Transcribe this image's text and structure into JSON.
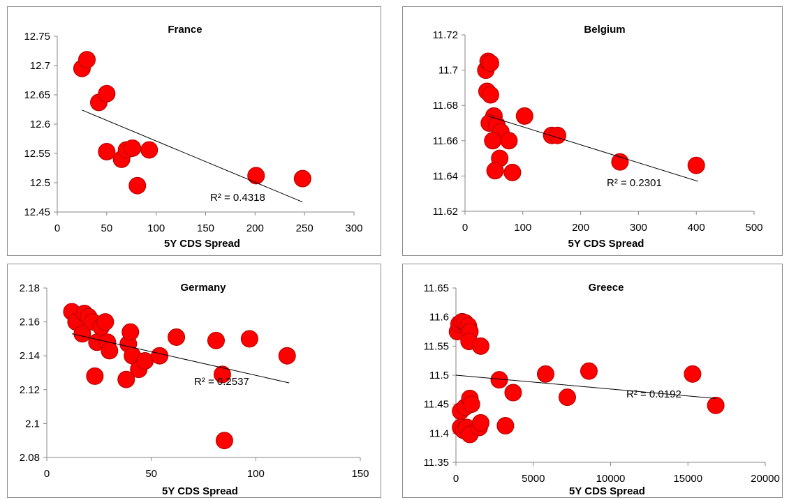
{
  "colors": {
    "marker": "#ff0000",
    "marker_stroke": "#b00000",
    "trendline": "#000000",
    "frame": "#8c8c8c"
  },
  "chart_data": [
    {
      "type": "scatter",
      "title": "France",
      "xlabel": "5Y CDS Spread",
      "ylabel": "",
      "xlim": [
        0,
        300
      ],
      "ylim": [
        12.45,
        12.75
      ],
      "xticks": [
        "0",
        "50",
        "100",
        "150",
        "200",
        "250",
        "300"
      ],
      "yticks": [
        "12.45",
        "12.5",
        "12.55",
        "12.6",
        "12.65",
        "12.7",
        "12.75"
      ],
      "r2_label": "R² = 0.4318",
      "trendline": {
        "x": [
          25,
          248
        ],
        "y": [
          12.624,
          12.467
        ]
      },
      "points": [
        {
          "x": 25,
          "y": 12.695
        },
        {
          "x": 30,
          "y": 12.71
        },
        {
          "x": 42,
          "y": 12.637
        },
        {
          "x": 50,
          "y": 12.652
        },
        {
          "x": 50,
          "y": 12.553
        },
        {
          "x": 65,
          "y": 12.54
        },
        {
          "x": 70,
          "y": 12.556
        },
        {
          "x": 76,
          "y": 12.559
        },
        {
          "x": 81,
          "y": 12.495
        },
        {
          "x": 93,
          "y": 12.556
        },
        {
          "x": 201,
          "y": 12.512
        },
        {
          "x": 248,
          "y": 12.507
        }
      ]
    },
    {
      "type": "scatter",
      "title": "Belgium",
      "xlabel": "5Y CDS Spread",
      "ylabel": "",
      "xlim": [
        0,
        500
      ],
      "ylim": [
        11.62,
        11.72
      ],
      "xticks": [
        "0",
        "100",
        "200",
        "300",
        "400",
        "500"
      ],
      "yticks": [
        "11.62",
        "11.64",
        "11.66",
        "11.68",
        "11.7",
        "11.72"
      ],
      "r2_label": "R² = 0.2301",
      "trendline": {
        "x": [
          40,
          403
        ],
        "y": [
          11.674,
          11.637
        ]
      },
      "points": [
        {
          "x": 36,
          "y": 11.7
        },
        {
          "x": 40,
          "y": 11.705
        },
        {
          "x": 44,
          "y": 11.704
        },
        {
          "x": 38,
          "y": 11.688
        },
        {
          "x": 44,
          "y": 11.686
        },
        {
          "x": 50,
          "y": 11.674
        },
        {
          "x": 42,
          "y": 11.67
        },
        {
          "x": 55,
          "y": 11.669
        },
        {
          "x": 62,
          "y": 11.665
        },
        {
          "x": 48,
          "y": 11.66
        },
        {
          "x": 60,
          "y": 11.65
        },
        {
          "x": 76,
          "y": 11.66
        },
        {
          "x": 52,
          "y": 11.643
        },
        {
          "x": 82,
          "y": 11.642
        },
        {
          "x": 103,
          "y": 11.674
        },
        {
          "x": 150,
          "y": 11.663
        },
        {
          "x": 160,
          "y": 11.663
        },
        {
          "x": 268,
          "y": 11.648
        },
        {
          "x": 400,
          "y": 11.646
        }
      ]
    },
    {
      "type": "scatter",
      "title": "Germany",
      "xlabel": "5Y CDS Spread",
      "ylabel": "",
      "xlim": [
        0,
        150
      ],
      "ylim": [
        2.08,
        2.18
      ],
      "xticks": [
        "0",
        "50",
        "100",
        "150"
      ],
      "yticks": [
        "2.08",
        "2.1",
        "2.12",
        "2.14",
        "2.16",
        "2.18"
      ],
      "r2_label": "R² = 0.2537",
      "trendline": {
        "x": [
          12,
          116
        ],
        "y": [
          2.153,
          2.124
        ]
      },
      "points": [
        {
          "x": 12,
          "y": 2.166
        },
        {
          "x": 14,
          "y": 2.16
        },
        {
          "x": 17,
          "y": 2.153
        },
        {
          "x": 18,
          "y": 2.165
        },
        {
          "x": 20,
          "y": 2.163
        },
        {
          "x": 22,
          "y": 2.16
        },
        {
          "x": 24,
          "y": 2.148
        },
        {
          "x": 26,
          "y": 2.157
        },
        {
          "x": 28,
          "y": 2.16
        },
        {
          "x": 29,
          "y": 2.148
        },
        {
          "x": 30,
          "y": 2.143
        },
        {
          "x": 23,
          "y": 2.128
        },
        {
          "x": 39,
          "y": 2.147
        },
        {
          "x": 40,
          "y": 2.154
        },
        {
          "x": 41,
          "y": 2.14
        },
        {
          "x": 44,
          "y": 2.132
        },
        {
          "x": 47,
          "y": 2.137
        },
        {
          "x": 38,
          "y": 2.126
        },
        {
          "x": 54,
          "y": 2.14
        },
        {
          "x": 62,
          "y": 2.151
        },
        {
          "x": 81,
          "y": 2.149
        },
        {
          "x": 84,
          "y": 2.129
        },
        {
          "x": 97,
          "y": 2.15
        },
        {
          "x": 115,
          "y": 2.14
        },
        {
          "x": 85,
          "y": 2.09
        }
      ]
    },
    {
      "type": "scatter",
      "title": "Greece",
      "xlabel": "5Y CDS Spread",
      "ylabel": "",
      "xlim": [
        0,
        20000
      ],
      "ylim": [
        11.35,
        11.65
      ],
      "xticks": [
        "0",
        "5000",
        "10000",
        "15000",
        "20000"
      ],
      "yticks": [
        "11.35",
        "11.4",
        "11.45",
        "11.5",
        "11.55",
        "11.6",
        "11.65"
      ],
      "r2_label": "R² = 0.0192",
      "trendline": {
        "x": [
          0,
          16800
        ],
        "y": [
          11.5,
          11.46
        ]
      },
      "points": [
        {
          "x": 100,
          "y": 11.575
        },
        {
          "x": 200,
          "y": 11.588
        },
        {
          "x": 400,
          "y": 11.592
        },
        {
          "x": 600,
          "y": 11.59
        },
        {
          "x": 800,
          "y": 11.585
        },
        {
          "x": 900,
          "y": 11.575
        },
        {
          "x": 850,
          "y": 11.558
        },
        {
          "x": 1600,
          "y": 11.55
        },
        {
          "x": 300,
          "y": 11.438
        },
        {
          "x": 600,
          "y": 11.445
        },
        {
          "x": 900,
          "y": 11.46
        },
        {
          "x": 1000,
          "y": 11.45
        },
        {
          "x": 300,
          "y": 11.41
        },
        {
          "x": 500,
          "y": 11.405
        },
        {
          "x": 700,
          "y": 11.41
        },
        {
          "x": 900,
          "y": 11.398
        },
        {
          "x": 1500,
          "y": 11.41
        },
        {
          "x": 1600,
          "y": 11.418
        },
        {
          "x": 3200,
          "y": 11.413
        },
        {
          "x": 2800,
          "y": 11.492
        },
        {
          "x": 3700,
          "y": 11.47
        },
        {
          "x": 5800,
          "y": 11.502
        },
        {
          "x": 7200,
          "y": 11.462
        },
        {
          "x": 8600,
          "y": 11.507
        },
        {
          "x": 15300,
          "y": 11.502
        },
        {
          "x": 16800,
          "y": 11.448
        }
      ]
    }
  ]
}
